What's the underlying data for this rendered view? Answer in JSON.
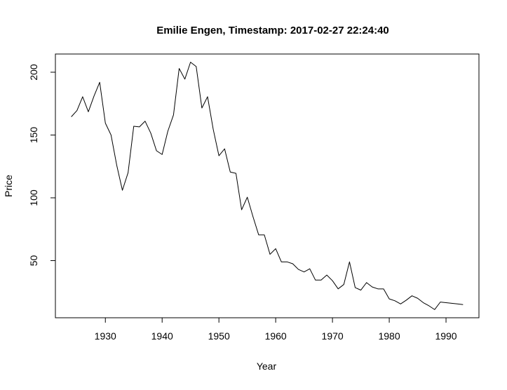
{
  "chart_data": {
    "type": "line",
    "title": "Emilie Engen, Timestamp: 2017-02-27 22:24:40",
    "xlabel": "Year",
    "ylabel": "Price",
    "xlim": [
      1921.2,
      1995.8
    ],
    "ylim": [
      4.5,
      214.5
    ],
    "xticks": [
      1930,
      1940,
      1950,
      1960,
      1970,
      1980,
      1990
    ],
    "yticks": [
      50,
      100,
      150,
      200
    ],
    "grid": false,
    "legend": "none",
    "line_color": "#000000",
    "series": [
      {
        "x": [
          1924,
          1925,
          1926,
          1927,
          1928,
          1929,
          1930,
          1931,
          1932,
          1933,
          1934,
          1935,
          1936,
          1937,
          1938,
          1939,
          1940,
          1941,
          1942,
          1943,
          1944,
          1945,
          1946,
          1947,
          1948,
          1949,
          1950,
          1951,
          1952,
          1953,
          1954,
          1955,
          1956,
          1957,
          1958,
          1959,
          1960,
          1961,
          1962,
          1963,
          1964,
          1965,
          1966,
          1967,
          1968,
          1969,
          1970,
          1971,
          1972,
          1973,
          1974,
          1975,
          1976,
          1977,
          1978,
          1979,
          1980,
          1981,
          1982,
          1983,
          1984,
          1985,
          1986,
          1987,
          1988,
          1989,
          1990,
          1991,
          1992,
          1993
        ],
        "y": [
          164.5,
          169.5,
          180.5,
          168.5,
          181,
          192,
          159.5,
          150,
          126,
          106,
          120,
          157,
          156.5,
          161,
          151.5,
          137.5,
          134.5,
          153,
          166,
          203,
          194.5,
          208,
          204.5,
          171.5,
          180.5,
          154.5,
          133.5,
          139,
          120.5,
          119.5,
          90.5,
          100.5,
          85,
          70.5,
          70.5,
          55,
          59.5,
          49,
          49,
          47.5,
          43,
          41,
          43.5,
          34.5,
          34.5,
          38.5,
          34,
          27.5,
          31,
          49,
          28.5,
          26.5,
          32.5,
          29,
          27.5,
          27.5,
          19.5,
          18,
          15.5,
          18.5,
          22,
          20,
          16.5,
          14,
          11,
          17,
          16.5,
          16,
          15.5,
          15
        ]
      }
    ]
  }
}
